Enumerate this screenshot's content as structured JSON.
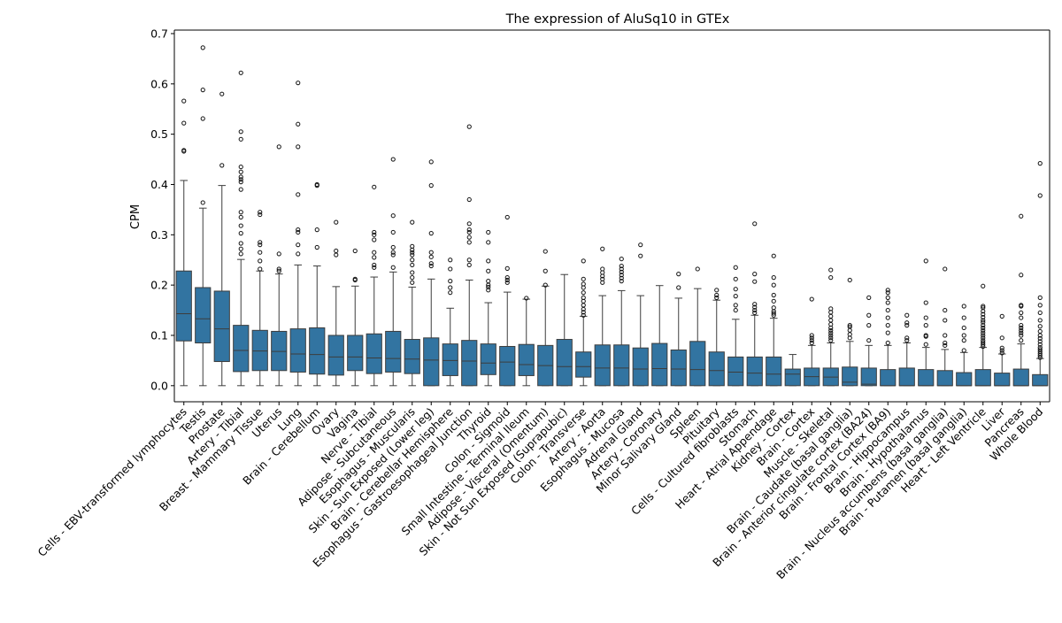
{
  "chart_data": {
    "type": "box",
    "title": "The expression of AluSq10 in GTEx",
    "xlabel": "",
    "ylabel": "CPM",
    "ylim": [
      -0.032,
      0.707
    ],
    "yticks": [
      0.0,
      0.1,
      0.2,
      0.3,
      0.4,
      0.5,
      0.6,
      0.7
    ],
    "ytick_labels": [
      "0.0",
      "0.1",
      "0.2",
      "0.3",
      "0.4",
      "0.5",
      "0.6",
      "0.7"
    ],
    "box_color": "#3274a1",
    "grid": false,
    "categories": [
      "Cells - EBV-transformed lymphocytes",
      "Testis",
      "Prostate",
      "Artery - Tibial",
      "Breast - Mammary Tissue",
      "Uterus",
      "Lung",
      "Brain - Cerebellum",
      "Ovary",
      "Vagina",
      "Nerve - Tibial",
      "Adipose - Subcutaneous",
      "Esophagus - Muscularis",
      "Skin - Sun Exposed (Lower leg)",
      "Brain - Cerebellar Hemisphere",
      "Esophagus - Gastroesophageal Junction",
      "Thyroid",
      "Colon - Sigmoid",
      "Small Intestine - Terminal Ileum",
      "Adipose - Visceral (Omentum)",
      "Skin - Not Sun Exposed (Suprapubic)",
      "Colon - Transverse",
      "Artery - Aorta",
      "Esophagus - Mucosa",
      "Adrenal Gland",
      "Artery - Coronary",
      "Minor Salivary Gland",
      "Spleen",
      "Pituitary",
      "Cells - Cultured fibroblasts",
      "Stomach",
      "Heart - Atrial Appendage",
      "Kidney - Cortex",
      "Brain - Cortex",
      "Muscle - Skeletal",
      "Brain - Caudate (basal ganglia)",
      "Brain - Anterior cingulate cortex (BA24)",
      "Brain - Frontal Cortex (BA9)",
      "Brain - Hippocampus",
      "Brain - Hypothalamus",
      "Brain - Nucleus accumbens (basal ganglia)",
      "Brain - Putamen (basal ganglia)",
      "Heart - Left Ventricle",
      "Liver",
      "Pancreas",
      "Whole Blood"
    ],
    "boxes": [
      {
        "whislo": 0.0,
        "q1": 0.089,
        "med": 0.143,
        "q3": 0.228,
        "whishi": 0.408,
        "fliers": [
          0.466,
          0.468,
          0.522,
          0.566
        ]
      },
      {
        "whislo": 0.0,
        "q1": 0.085,
        "med": 0.133,
        "q3": 0.195,
        "whishi": 0.353,
        "fliers": [
          0.364,
          0.531,
          0.588,
          0.672
        ]
      },
      {
        "whislo": 0.0,
        "q1": 0.048,
        "med": 0.113,
        "q3": 0.188,
        "whishi": 0.398,
        "fliers": [
          0.438,
          0.58
        ]
      },
      {
        "whislo": 0.0,
        "q1": 0.028,
        "med": 0.07,
        "q3": 0.12,
        "whishi": 0.251,
        "fliers": [
          0.262,
          0.272,
          0.283,
          0.303,
          0.318,
          0.335,
          0.345,
          0.39,
          0.405,
          0.41,
          0.415,
          0.425,
          0.435,
          0.49,
          0.505,
          0.622
        ]
      },
      {
        "whislo": 0.0,
        "q1": 0.03,
        "med": 0.069,
        "q3": 0.11,
        "whishi": 0.228,
        "fliers": [
          0.232,
          0.248,
          0.265,
          0.28,
          0.285,
          0.34,
          0.345
        ]
      },
      {
        "whislo": 0.0,
        "q1": 0.03,
        "med": 0.068,
        "q3": 0.108,
        "whishi": 0.222,
        "fliers": [
          0.228,
          0.232,
          0.262,
          0.475
        ]
      },
      {
        "whislo": 0.0,
        "q1": 0.027,
        "med": 0.063,
        "q3": 0.113,
        "whishi": 0.24,
        "fliers": [
          0.262,
          0.28,
          0.305,
          0.31,
          0.38,
          0.475,
          0.52,
          0.602
        ]
      },
      {
        "whislo": 0.0,
        "q1": 0.023,
        "med": 0.062,
        "q3": 0.115,
        "whishi": 0.238,
        "fliers": [
          0.275,
          0.31,
          0.398,
          0.4
        ]
      },
      {
        "whislo": 0.0,
        "q1": 0.021,
        "med": 0.057,
        "q3": 0.1,
        "whishi": 0.197,
        "fliers": [
          0.26,
          0.268,
          0.325
        ]
      },
      {
        "whislo": 0.0,
        "q1": 0.03,
        "med": 0.057,
        "q3": 0.1,
        "whishi": 0.198,
        "fliers": [
          0.21,
          0.212,
          0.268
        ]
      },
      {
        "whislo": 0.0,
        "q1": 0.024,
        "med": 0.055,
        "q3": 0.103,
        "whishi": 0.216,
        "fliers": [
          0.235,
          0.24,
          0.255,
          0.265,
          0.29,
          0.3,
          0.305,
          0.395
        ]
      },
      {
        "whislo": 0.0,
        "q1": 0.027,
        "med": 0.054,
        "q3": 0.108,
        "whishi": 0.226,
        "fliers": [
          0.235,
          0.26,
          0.265,
          0.275,
          0.305,
          0.338,
          0.45
        ]
      },
      {
        "whislo": 0.0,
        "q1": 0.024,
        "med": 0.053,
        "q3": 0.092,
        "whishi": 0.196,
        "fliers": [
          0.205,
          0.215,
          0.225,
          0.24,
          0.25,
          0.26,
          0.265,
          0.27,
          0.277,
          0.325
        ]
      },
      {
        "whislo": 0.0,
        "q1": 0.0,
        "med": 0.051,
        "q3": 0.095,
        "whishi": 0.212,
        "fliers": [
          0.238,
          0.243,
          0.256,
          0.265,
          0.303,
          0.398,
          0.445
        ]
      },
      {
        "whislo": 0.0,
        "q1": 0.02,
        "med": 0.05,
        "q3": 0.083,
        "whishi": 0.154,
        "fliers": [
          0.185,
          0.195,
          0.208,
          0.232,
          0.25
        ]
      },
      {
        "whislo": 0.0,
        "q1": 0.0,
        "med": 0.049,
        "q3": 0.09,
        "whishi": 0.21,
        "fliers": [
          0.24,
          0.25,
          0.285,
          0.295,
          0.305,
          0.31,
          0.322,
          0.37,
          0.515
        ]
      },
      {
        "whislo": 0.0,
        "q1": 0.022,
        "med": 0.045,
        "q3": 0.083,
        "whishi": 0.165,
        "fliers": [
          0.19,
          0.196,
          0.2,
          0.208,
          0.228,
          0.248,
          0.285,
          0.305
        ]
      },
      {
        "whislo": 0.0,
        "q1": 0.0,
        "med": 0.047,
        "q3": 0.078,
        "whishi": 0.186,
        "fliers": [
          0.205,
          0.21,
          0.215,
          0.233,
          0.335
        ]
      },
      {
        "whislo": 0.0,
        "q1": 0.02,
        "med": 0.042,
        "q3": 0.082,
        "whishi": 0.172,
        "fliers": [
          0.174
        ]
      },
      {
        "whislo": 0.0,
        "q1": 0.0,
        "med": 0.04,
        "q3": 0.08,
        "whishi": 0.198,
        "fliers": [
          0.2,
          0.228,
          0.267
        ]
      },
      {
        "whislo": 0.0,
        "q1": 0.0,
        "med": 0.038,
        "q3": 0.092,
        "whishi": 0.221,
        "fliers": []
      },
      {
        "whislo": 0.0,
        "q1": 0.017,
        "med": 0.038,
        "q3": 0.067,
        "whishi": 0.138,
        "fliers": [
          0.14,
          0.146,
          0.152,
          0.16,
          0.168,
          0.175,
          0.185,
          0.195,
          0.202,
          0.212,
          0.248
        ]
      },
      {
        "whislo": 0.0,
        "q1": 0.0,
        "med": 0.035,
        "q3": 0.081,
        "whishi": 0.179,
        "fliers": [
          0.205,
          0.212,
          0.218,
          0.225,
          0.232,
          0.272
        ]
      },
      {
        "whislo": 0.0,
        "q1": 0.0,
        "med": 0.035,
        "q3": 0.081,
        "whishi": 0.189,
        "fliers": [
          0.208,
          0.214,
          0.22,
          0.226,
          0.232,
          0.238,
          0.252
        ]
      },
      {
        "whislo": 0.0,
        "q1": 0.0,
        "med": 0.033,
        "q3": 0.075,
        "whishi": 0.179,
        "fliers": [
          0.258,
          0.28
        ]
      },
      {
        "whislo": 0.0,
        "q1": 0.0,
        "med": 0.034,
        "q3": 0.084,
        "whishi": 0.199,
        "fliers": []
      },
      {
        "whislo": 0.0,
        "q1": 0.0,
        "med": 0.033,
        "q3": 0.071,
        "whishi": 0.174,
        "fliers": [
          0.195,
          0.222
        ]
      },
      {
        "whislo": 0.0,
        "q1": 0.0,
        "med": 0.032,
        "q3": 0.088,
        "whishi": 0.193,
        "fliers": [
          0.232
        ]
      },
      {
        "whislo": 0.0,
        "q1": 0.0,
        "med": 0.03,
        "q3": 0.067,
        "whishi": 0.17,
        "fliers": [
          0.175,
          0.18,
          0.19
        ]
      },
      {
        "whislo": 0.0,
        "q1": 0.0,
        "med": 0.027,
        "q3": 0.057,
        "whishi": 0.132,
        "fliers": [
          0.15,
          0.16,
          0.178,
          0.192,
          0.212,
          0.235
        ]
      },
      {
        "whislo": 0.0,
        "q1": 0.0,
        "med": 0.025,
        "q3": 0.057,
        "whishi": 0.14,
        "fliers": [
          0.145,
          0.15,
          0.156,
          0.162,
          0.207,
          0.222,
          0.322
        ]
      },
      {
        "whislo": 0.0,
        "q1": 0.0,
        "med": 0.023,
        "q3": 0.057,
        "whishi": 0.134,
        "fliers": [
          0.14,
          0.144,
          0.148,
          0.155,
          0.168,
          0.18,
          0.2,
          0.215,
          0.258
        ]
      },
      {
        "whislo": 0.0,
        "q1": 0.0,
        "med": 0.023,
        "q3": 0.033,
        "whishi": 0.062,
        "fliers": []
      },
      {
        "whislo": 0.0,
        "q1": 0.0,
        "med": 0.018,
        "q3": 0.035,
        "whishi": 0.08,
        "fliers": [
          0.085,
          0.09,
          0.095,
          0.1,
          0.172
        ]
      },
      {
        "whislo": 0.0,
        "q1": 0.0,
        "med": 0.017,
        "q3": 0.035,
        "whishi": 0.085,
        "fliers": [
          0.09,
          0.095,
          0.1,
          0.105,
          0.11,
          0.115,
          0.122,
          0.13,
          0.138,
          0.146,
          0.153,
          0.215,
          0.23
        ]
      },
      {
        "whislo": 0.0,
        "q1": 0.0,
        "med": 0.007,
        "q3": 0.037,
        "whishi": 0.088,
        "fliers": [
          0.095,
          0.102,
          0.11,
          0.117,
          0.12,
          0.21
        ]
      },
      {
        "whislo": 0.0,
        "q1": 0.0,
        "med": 0.003,
        "q3": 0.035,
        "whishi": 0.08,
        "fliers": [
          0.09,
          0.12,
          0.14,
          0.175
        ]
      },
      {
        "whislo": 0.0,
        "q1": 0.0,
        "med": 0.0,
        "q3": 0.032,
        "whishi": 0.08,
        "fliers": [
          0.085,
          0.105,
          0.12,
          0.135,
          0.15,
          0.165,
          0.175,
          0.185,
          0.19
        ]
      },
      {
        "whislo": 0.0,
        "q1": 0.0,
        "med": 0.0,
        "q3": 0.035,
        "whishi": 0.085,
        "fliers": [
          0.09,
          0.095,
          0.12,
          0.125,
          0.14
        ]
      },
      {
        "whislo": 0.0,
        "q1": 0.0,
        "med": 0.0,
        "q3": 0.032,
        "whishi": 0.076,
        "fliers": [
          0.082,
          0.098,
          0.1,
          0.12,
          0.135,
          0.165,
          0.248
        ]
      },
      {
        "whislo": 0.0,
        "q1": 0.0,
        "med": 0.0,
        "q3": 0.03,
        "whishi": 0.072,
        "fliers": [
          0.08,
          0.085,
          0.1,
          0.13,
          0.15,
          0.232
        ]
      },
      {
        "whislo": 0.0,
        "q1": 0.0,
        "med": 0.0,
        "q3": 0.026,
        "whishi": 0.066,
        "fliers": [
          0.07,
          0.09,
          0.1,
          0.115,
          0.135,
          0.158
        ]
      },
      {
        "whislo": 0.0,
        "q1": 0.0,
        "med": 0.0,
        "q3": 0.032,
        "whishi": 0.076,
        "fliers": [
          0.078,
          0.082,
          0.086,
          0.09,
          0.095,
          0.1,
          0.105,
          0.11,
          0.115,
          0.12,
          0.126,
          0.13,
          0.136,
          0.142,
          0.148,
          0.155,
          0.158,
          0.198
        ]
      },
      {
        "whislo": 0.0,
        "q1": 0.0,
        "med": 0.0,
        "q3": 0.025,
        "whishi": 0.063,
        "fliers": [
          0.065,
          0.07,
          0.075,
          0.095,
          0.138
        ]
      },
      {
        "whislo": 0.0,
        "q1": 0.0,
        "med": 0.0,
        "q3": 0.033,
        "whishi": 0.083,
        "fliers": [
          0.09,
          0.1,
          0.105,
          0.11,
          0.115,
          0.12,
          0.135,
          0.145,
          0.158,
          0.16,
          0.22,
          0.337
        ]
      },
      {
        "whislo": 0.0,
        "q1": 0.0,
        "med": 0.0,
        "q3": 0.022,
        "whishi": 0.054,
        "fliers": [
          0.056,
          0.06,
          0.064,
          0.068,
          0.072,
          0.076,
          0.082,
          0.088,
          0.094,
          0.1,
          0.108,
          0.118,
          0.13,
          0.145,
          0.16,
          0.175,
          0.378,
          0.442
        ]
      }
    ]
  }
}
